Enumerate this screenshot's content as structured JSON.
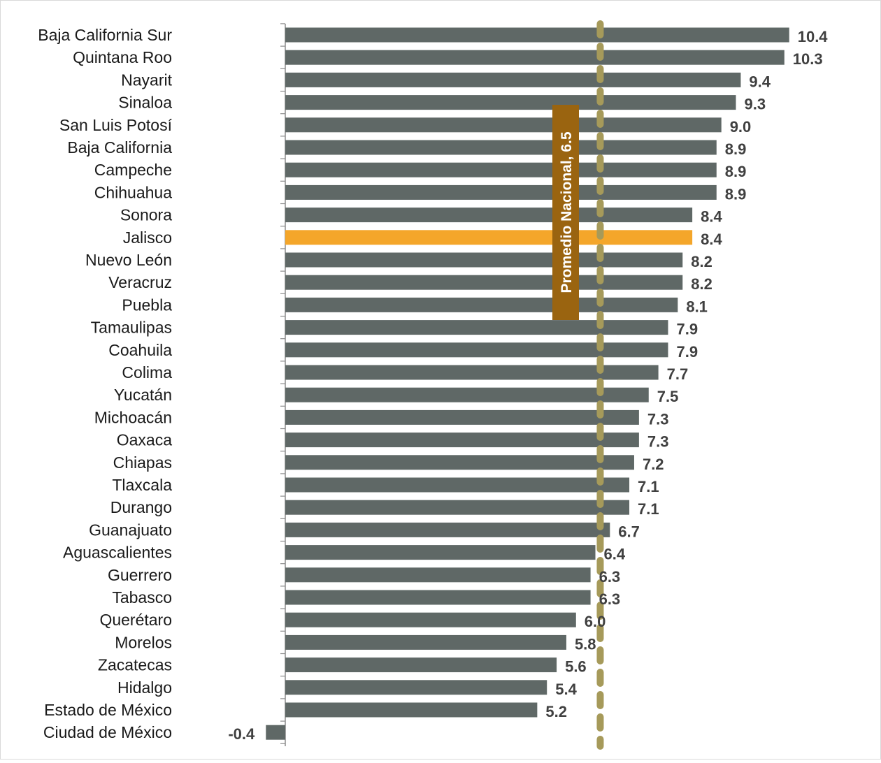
{
  "chart_data": {
    "type": "bar",
    "orientation": "horizontal",
    "categories": [
      "Baja California Sur",
      "Quintana Roo",
      "Nayarit",
      "Sinaloa",
      "San Luis Potosí",
      "Baja California",
      "Campeche",
      "Chihuahua",
      "Sonora",
      "Jalisco",
      "Nuevo León",
      "Veracruz",
      "Puebla",
      "Tamaulipas",
      "Coahuila",
      "Colima",
      "Yucatán",
      "Michoacán",
      "Oaxaca",
      "Chiapas",
      "Tlaxcala",
      "Durango",
      "Guanajuato",
      "Aguascalientes",
      "Guerrero",
      "Tabasco",
      "Querétaro",
      "Morelos",
      "Zacatecas",
      "Hidalgo",
      "Estado de México",
      "Ciudad de México"
    ],
    "values": [
      10.4,
      10.3,
      9.4,
      9.3,
      9.0,
      8.9,
      8.9,
      8.9,
      8.4,
      8.4,
      8.2,
      8.2,
      8.1,
      7.9,
      7.9,
      7.7,
      7.5,
      7.3,
      7.3,
      7.2,
      7.1,
      7.1,
      6.7,
      6.4,
      6.3,
      6.3,
      6.0,
      5.8,
      5.6,
      5.4,
      5.2,
      -0.4
    ],
    "value_labels": [
      "10.4",
      "10.3",
      "9.4",
      "9.3",
      "9.0",
      "8.9",
      "8.9",
      "8.9",
      "8.4",
      "8.4",
      "8.2",
      "8.2",
      "8.1",
      "7.9",
      "7.9",
      "7.7",
      "7.5",
      "7.3",
      "7.3",
      "7.2",
      "7.1",
      "7.1",
      "6.7",
      "6.4",
      "6.3",
      "6.3",
      "6.0",
      "5.8",
      "5.6",
      "5.4",
      "5.2",
      "-0.4"
    ],
    "highlight_category": "Jalisco",
    "reference_line": {
      "value": 6.5,
      "label": "Promedio Nacional, 6.5"
    },
    "xlim": [
      -0.5,
      10.4
    ],
    "grid": false,
    "legend": "none",
    "colors": {
      "bar": "#5f6866",
      "highlight": "#f4a62a",
      "reference_line": "#a69a5a",
      "reference_label_bg": "#9a6410",
      "axis": "#8c8c8c"
    }
  }
}
